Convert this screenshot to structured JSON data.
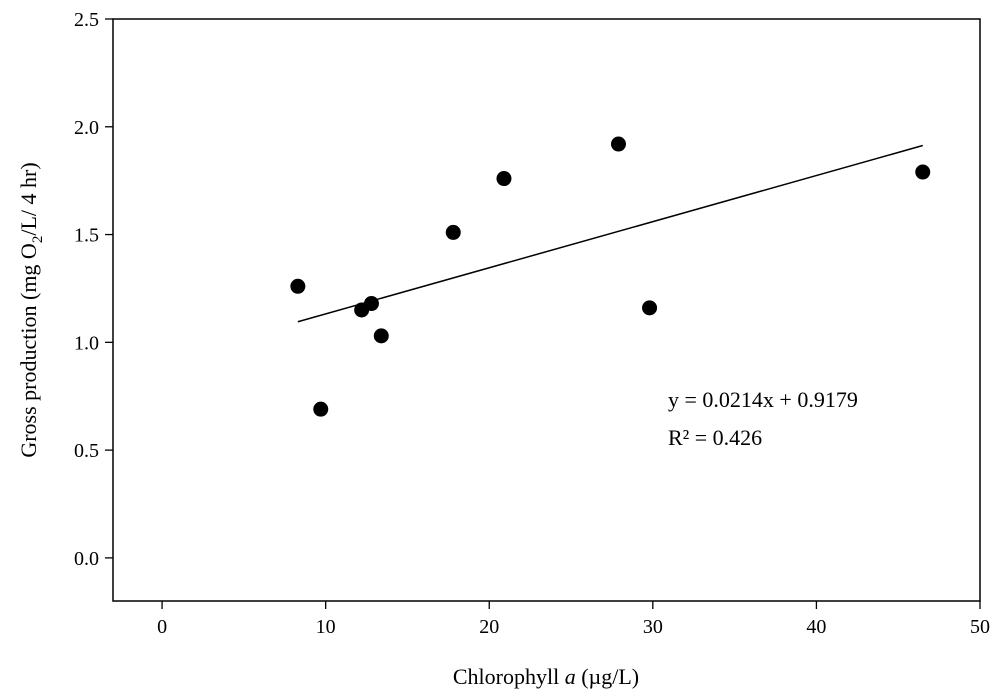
{
  "chart_data": {
    "type": "scatter",
    "xlabel_main": "Chlorophyll ",
    "xlabel_italic": "a",
    "xlabel_units": " (µg/L)",
    "ylabel_main": "Gross production (mg O",
    "ylabel_sub": "2",
    "ylabel_tail": "/L/ 4 hr)",
    "xlim": [
      -3,
      50
    ],
    "ylim": [
      -0.2,
      2.5
    ],
    "x_ticks": [
      0,
      10,
      20,
      30,
      40,
      50
    ],
    "y_ticks": [
      0.0,
      0.5,
      1.0,
      1.5,
      2.0,
      2.5
    ],
    "x_tick_labels": [
      "0",
      "10",
      "20",
      "30",
      "40",
      "50"
    ],
    "y_tick_labels": [
      "0.0",
      "0.5",
      "1.0",
      "1.5",
      "2.0",
      "2.5"
    ],
    "points": [
      {
        "x": 8.3,
        "y": 1.26
      },
      {
        "x": 9.7,
        "y": 0.69
      },
      {
        "x": 12.2,
        "y": 1.15
      },
      {
        "x": 12.8,
        "y": 1.18
      },
      {
        "x": 13.4,
        "y": 1.03
      },
      {
        "x": 17.8,
        "y": 1.51
      },
      {
        "x": 20.9,
        "y": 1.76
      },
      {
        "x": 27.9,
        "y": 1.92
      },
      {
        "x": 29.8,
        "y": 1.16
      },
      {
        "x": 46.5,
        "y": 1.79
      }
    ],
    "trendline": {
      "slope": 0.0214,
      "intercept": 0.9179,
      "x_range": [
        8.3,
        46.5
      ]
    },
    "equation": "y = 0.0214x + 0.9179",
    "r_squared": "R² = 0.426",
    "grid": false,
    "legend": "none"
  }
}
